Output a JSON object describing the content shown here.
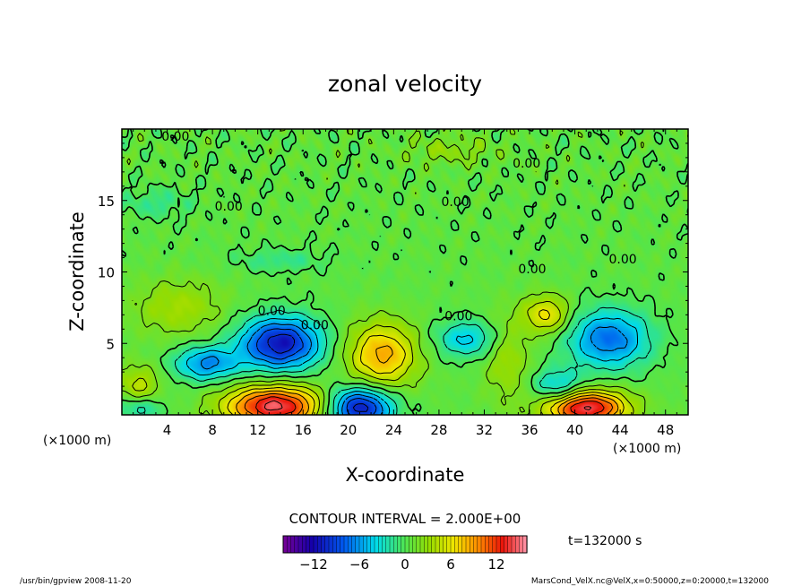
{
  "chart_data": {
    "type": "heatmap",
    "title": "zonal velocity",
    "xlabel": "X-coordinate",
    "ylabel": "Z-coordinate",
    "x_unit_label": "(×1000 m)",
    "x_unit_label_right": "(×1000 m)",
    "xlim": [
      0,
      50
    ],
    "ylim": [
      0,
      20
    ],
    "x_ticks": [
      4,
      8,
      12,
      16,
      20,
      24,
      28,
      32,
      36,
      40,
      44,
      48
    ],
    "y_ticks": [
      5,
      10,
      15
    ],
    "contour_interval_text": "CONTOUR INTERVAL = 2.000E+00",
    "time_label": "t=132000 s",
    "colorbar": {
      "min": -16,
      "max": 16,
      "ticks": [
        -12,
        -6,
        0,
        6,
        12
      ],
      "tick_labels": [
        "−12",
        "−6",
        "0",
        "6",
        "12"
      ]
    },
    "contour_labels": [
      {
        "text": "0.00",
        "x": 3.5,
        "y": 19.2
      },
      {
        "text": "0.00",
        "x": 34.5,
        "y": 17.3
      },
      {
        "text": "0.00",
        "x": 8.2,
        "y": 14.3
      },
      {
        "text": "0.00",
        "x": 28.2,
        "y": 14.6
      },
      {
        "text": "0.00",
        "x": 43.0,
        "y": 10.6
      },
      {
        "text": "0.00",
        "x": 35.0,
        "y": 9.9
      },
      {
        "text": "0.00",
        "x": 12.0,
        "y": 7.0
      },
      {
        "text": "0.00",
        "x": 15.8,
        "y": 6.0
      },
      {
        "text": "0.00",
        "x": 28.5,
        "y": 6.6
      }
    ],
    "features": [
      {
        "kind": "max",
        "x": 23.0,
        "y": 4.2,
        "value": 8,
        "rx": 3.0,
        "ry": 2.2
      },
      {
        "kind": "max",
        "x": 13.5,
        "y": 0.6,
        "value": 14,
        "rx": 4.2,
        "ry": 1.4
      },
      {
        "kind": "max",
        "x": 41.0,
        "y": 0.5,
        "value": 14,
        "rx": 3.5,
        "ry": 1.2
      },
      {
        "kind": "max",
        "x": 37.5,
        "y": 7.0,
        "value": 6,
        "rx": 2.0,
        "ry": 1.3
      },
      {
        "kind": "max",
        "x": 5.0,
        "y": 7.5,
        "value": 3,
        "rx": 4.0,
        "ry": 2.0
      },
      {
        "kind": "max",
        "x": 34.0,
        "y": 4.0,
        "value": 3,
        "rx": 2.0,
        "ry": 3.0
      },
      {
        "kind": "max",
        "x": 1.5,
        "y": 2.0,
        "value": 4,
        "rx": 1.8,
        "ry": 1.5
      },
      {
        "kind": "max",
        "x": 29.0,
        "y": 18.5,
        "value": 2,
        "rx": 4.0,
        "ry": 1.0
      },
      {
        "kind": "min",
        "x": 14.0,
        "y": 5.0,
        "value": -12,
        "rx": 3.5,
        "ry": 1.8
      },
      {
        "kind": "min",
        "x": 7.5,
        "y": 3.6,
        "value": -7,
        "rx": 2.8,
        "ry": 1.2
      },
      {
        "kind": "min",
        "x": 43.0,
        "y": 5.3,
        "value": -8,
        "rx": 3.5,
        "ry": 2.0
      },
      {
        "kind": "min",
        "x": 30.5,
        "y": 5.3,
        "value": -5,
        "rx": 2.8,
        "ry": 1.3
      },
      {
        "kind": "min",
        "x": 21.0,
        "y": 0.5,
        "value": -12,
        "rx": 2.8,
        "ry": 1.4
      },
      {
        "kind": "min",
        "x": 38.5,
        "y": 2.0,
        "value": -5,
        "rx": 2.2,
        "ry": 1.2
      },
      {
        "kind": "min",
        "x": 1.5,
        "y": 0.5,
        "value": -4,
        "rx": 2.0,
        "ry": 0.9
      },
      {
        "kind": "min",
        "x": 3.0,
        "y": 14.8,
        "value": -2,
        "rx": 3.0,
        "ry": 1.0
      },
      {
        "kind": "min",
        "x": 14.0,
        "y": 10.8,
        "value": -2,
        "rx": 4.0,
        "ry": 0.8
      }
    ]
  },
  "footer": {
    "left": "/usr/bin/gpview   2008-11-20",
    "right": "MarsCond_VelX.nc@VelX,x=0:50000,z=0:20000,t=132000"
  }
}
